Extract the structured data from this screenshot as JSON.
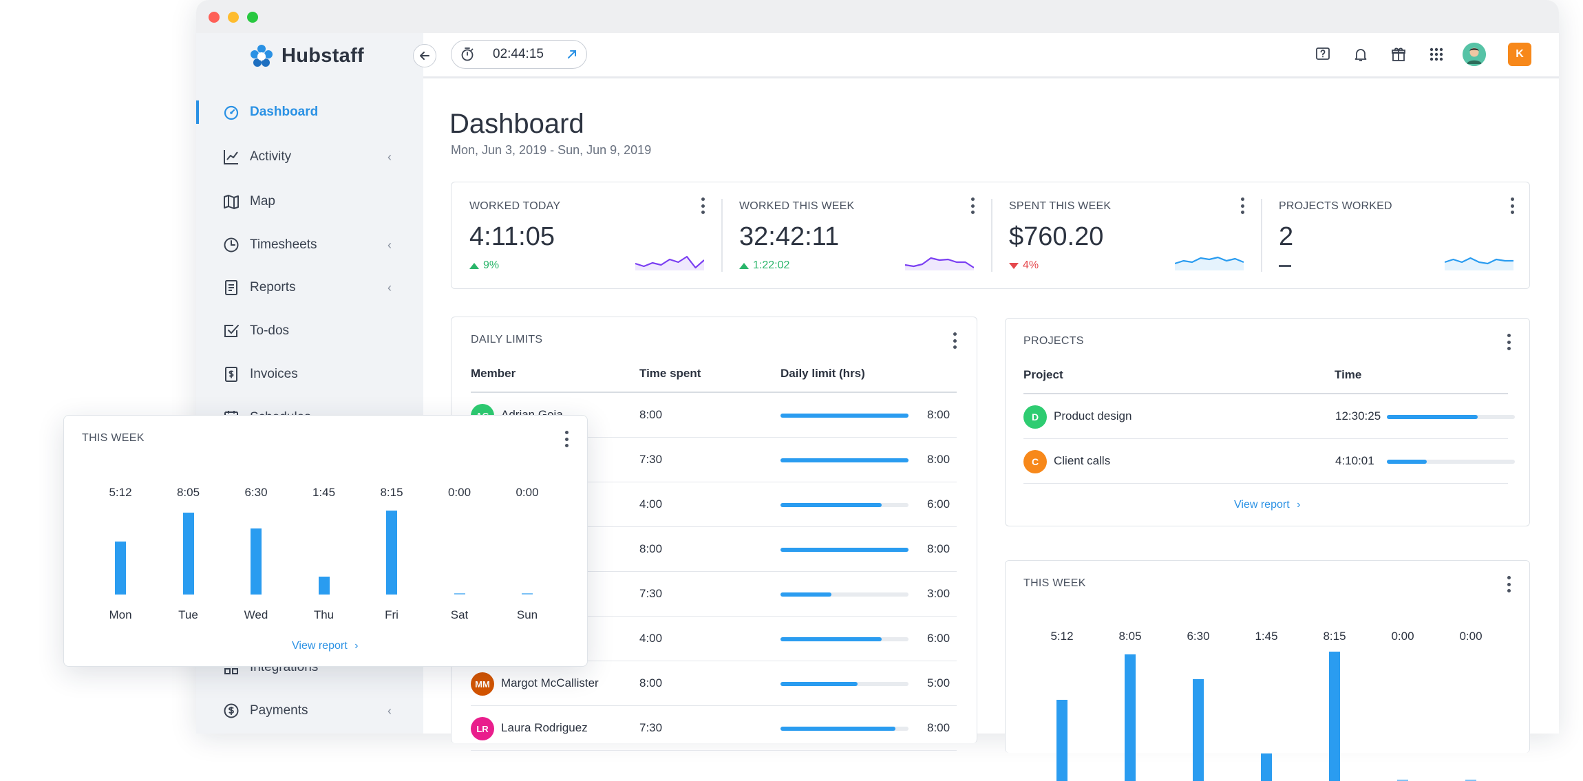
{
  "app": {
    "name": "Hubstaff"
  },
  "timer": {
    "value": "02:44:15"
  },
  "org_badge": "K",
  "sidebar": {
    "items": [
      {
        "label": "Dashboard",
        "icon": "dashboard-icon",
        "active": true,
        "chevron": false
      },
      {
        "label": "Activity",
        "icon": "activity-chart-icon",
        "active": false,
        "chevron": true
      },
      {
        "label": "Map",
        "icon": "map-icon",
        "active": false,
        "chevron": false
      },
      {
        "label": "Timesheets",
        "icon": "clock-icon",
        "active": false,
        "chevron": true
      },
      {
        "label": "Reports",
        "icon": "report-icon",
        "active": false,
        "chevron": true
      },
      {
        "label": "To-dos",
        "icon": "checkbox-icon",
        "active": false,
        "chevron": false
      },
      {
        "label": "Invoices",
        "icon": "invoice-icon",
        "active": false,
        "chevron": false
      },
      {
        "label": "Schedules",
        "icon": "calendar-icon",
        "active": false,
        "chevron": false
      },
      {
        "label": "Integrations",
        "icon": "integrations-icon",
        "active": false,
        "chevron": false
      },
      {
        "label": "Payments",
        "icon": "dollar-icon",
        "active": false,
        "chevron": true
      }
    ]
  },
  "page": {
    "title": "Dashboard",
    "date_range": "Mon, Jun 3, 2019 - Sun, Jun 9, 2019"
  },
  "stats": [
    {
      "label": "WORKED TODAY",
      "value": "4:11:05",
      "delta": "9%",
      "direction": "up",
      "color": "#7b3ff2"
    },
    {
      "label": "WORKED THIS WEEK",
      "value": "32:42:11",
      "delta": "1:22:02",
      "direction": "up",
      "color": "#7b3ff2"
    },
    {
      "label": "SPENT THIS WEEK",
      "value": "$760.20",
      "delta": "4%",
      "direction": "down",
      "color": "#2a9cf0"
    },
    {
      "label": "PROJECTS WORKED",
      "value": "2",
      "delta": "",
      "direction": "flat",
      "color": "#2a9cf0"
    }
  ],
  "daily_limits": {
    "title": "DAILY LIMITS",
    "columns": [
      "Member",
      "Time spent",
      "Daily limit (hrs)"
    ],
    "rows": [
      {
        "member": "Adrian Goia",
        "initials": "AG",
        "avatar_color": "#2ecc71",
        "spent": "8:00",
        "limit": "8:00",
        "fraction": 1.0
      },
      {
        "member": "",
        "initials": "",
        "avatar_color": "",
        "spent": "7:30",
        "limit": "8:00",
        "fraction": 1.0
      },
      {
        "member": "",
        "initials": "",
        "avatar_color": "",
        "spent": "4:00",
        "limit": "6:00",
        "fraction": 0.79
      },
      {
        "member": "",
        "initials": "",
        "avatar_color": "",
        "spent": "8:00",
        "limit": "8:00",
        "fraction": 1.0
      },
      {
        "member": "",
        "initials": "",
        "avatar_color": "",
        "spent": "7:30",
        "limit": "3:00",
        "fraction": 0.4
      },
      {
        "member": "",
        "initials": "",
        "avatar_color": "",
        "spent": "4:00",
        "limit": "6:00",
        "fraction": 0.79
      },
      {
        "member": "Margot McCallister",
        "initials": "MM",
        "avatar_color": "#d35400",
        "spent": "8:00",
        "limit": "5:00",
        "fraction": 0.6
      },
      {
        "member": "Laura Rodriguez",
        "initials": "LR",
        "avatar_color": "#e91e8c",
        "spent": "7:30",
        "limit": "8:00",
        "fraction": 0.9
      }
    ]
  },
  "projects": {
    "title": "PROJECTS",
    "columns": [
      "Project",
      "Time"
    ],
    "rows": [
      {
        "name": "Product design",
        "initial": "D",
        "color": "#2ecc71",
        "time": "12:30:25",
        "fraction": 0.71
      },
      {
        "name": "Client calls",
        "initial": "C",
        "color": "#f7881a",
        "time": "4:10:01",
        "fraction": 0.31
      }
    ],
    "link": "View report"
  },
  "this_week": {
    "title": "THIS WEEK",
    "link": "View report"
  },
  "chart_data": {
    "type": "bar",
    "title": "THIS WEEK",
    "categories": [
      "Mon",
      "Tue",
      "Wed",
      "Thu",
      "Fri",
      "Sat",
      "Sun"
    ],
    "labels": [
      "5:12",
      "8:05",
      "6:30",
      "1:45",
      "8:15",
      "0:00",
      "0:00"
    ],
    "values": [
      5.2,
      8.08,
      6.5,
      1.75,
      8.25,
      0,
      0
    ],
    "color": "#2a9cf0"
  }
}
